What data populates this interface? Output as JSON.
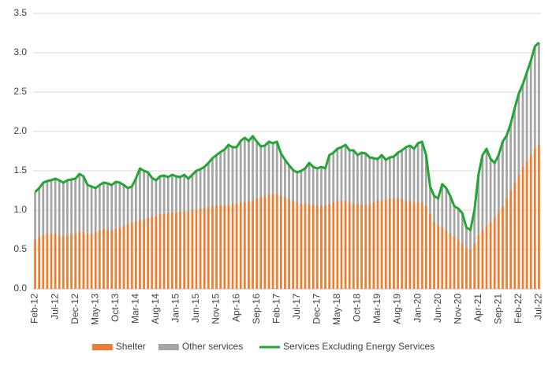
{
  "chart_data": {
    "type": "bar",
    "stacked": true,
    "categories": [
      "Feb-12",
      null,
      null,
      null,
      null,
      "Jul-12",
      null,
      null,
      null,
      null,
      "Dec-12",
      null,
      null,
      null,
      null,
      "May-13",
      null,
      null,
      null,
      null,
      "Oct-13",
      null,
      null,
      null,
      null,
      "Mar-14",
      null,
      null,
      null,
      null,
      "Aug-14",
      null,
      null,
      null,
      null,
      "Jan-15",
      null,
      null,
      null,
      null,
      "Jun-15",
      null,
      null,
      null,
      null,
      "Nov-15",
      null,
      null,
      null,
      null,
      "Apr-16",
      null,
      null,
      null,
      null,
      "Sep-16",
      null,
      null,
      null,
      null,
      "Feb-17",
      null,
      null,
      null,
      null,
      "Jul-17",
      null,
      null,
      null,
      null,
      "Dec-17",
      null,
      null,
      null,
      null,
      "May-18",
      null,
      null,
      null,
      null,
      "Oct-18",
      null,
      null,
      null,
      null,
      "Mar-19",
      null,
      null,
      null,
      null,
      "Aug-19",
      null,
      null,
      null,
      null,
      "Jan-20",
      null,
      null,
      null,
      null,
      "Jun-20",
      null,
      null,
      null,
      null,
      "Nov-20",
      null,
      null,
      null,
      null,
      "Apr-21",
      null,
      null,
      null,
      null,
      "Sep-21",
      null,
      null,
      null,
      null,
      "Feb-22",
      null,
      null,
      null,
      null,
      "Jul-22"
    ],
    "series": [
      {
        "name": "Shelter",
        "type": "bar",
        "color": "#ed7d31",
        "values": [
          0.62,
          0.66,
          0.68,
          0.7,
          0.7,
          0.7,
          0.68,
          0.67,
          0.68,
          0.7,
          0.7,
          0.72,
          0.72,
          0.7,
          0.7,
          0.72,
          0.74,
          0.76,
          0.75,
          0.74,
          0.76,
          0.78,
          0.8,
          0.82,
          0.84,
          0.86,
          0.88,
          0.88,
          0.9,
          0.92,
          0.92,
          0.95,
          0.95,
          0.96,
          0.97,
          0.97,
          0.98,
          0.98,
          0.98,
          1.0,
          1.0,
          1.02,
          1.03,
          1.04,
          1.05,
          1.06,
          1.06,
          1.06,
          1.07,
          1.08,
          1.08,
          1.1,
          1.1,
          1.12,
          1.12,
          1.15,
          1.17,
          1.18,
          1.2,
          1.2,
          1.2,
          1.18,
          1.16,
          1.14,
          1.12,
          1.1,
          1.08,
          1.08,
          1.08,
          1.07,
          1.06,
          1.06,
          1.06,
          1.08,
          1.1,
          1.12,
          1.12,
          1.12,
          1.1,
          1.08,
          1.08,
          1.07,
          1.07,
          1.08,
          1.1,
          1.12,
          1.12,
          1.13,
          1.14,
          1.15,
          1.15,
          1.14,
          1.12,
          1.12,
          1.1,
          1.1,
          1.1,
          1.05,
          0.95,
          0.85,
          0.8,
          0.78,
          0.75,
          0.7,
          0.66,
          0.62,
          0.58,
          0.52,
          0.5,
          0.58,
          0.68,
          0.75,
          0.8,
          0.85,
          0.9,
          0.98,
          1.05,
          1.15,
          1.25,
          1.35,
          1.45,
          1.55,
          1.62,
          1.7,
          1.78,
          1.83
        ]
      },
      {
        "name": "Other services",
        "type": "bar",
        "color": "#a5a5a5",
        "values": [
          0.61,
          0.62,
          0.67,
          0.67,
          0.68,
          0.7,
          0.7,
          0.68,
          0.7,
          0.69,
          0.7,
          0.74,
          0.71,
          0.62,
          0.6,
          0.56,
          0.58,
          0.59,
          0.59,
          0.58,
          0.6,
          0.57,
          0.52,
          0.46,
          0.46,
          0.54,
          0.65,
          0.62,
          0.58,
          0.49,
          0.46,
          0.48,
          0.49,
          0.46,
          0.48,
          0.46,
          0.44,
          0.47,
          0.42,
          0.45,
          0.5,
          0.5,
          0.52,
          0.56,
          0.61,
          0.64,
          0.68,
          0.71,
          0.76,
          0.72,
          0.72,
          0.78,
          0.82,
          0.76,
          0.82,
          0.72,
          0.64,
          0.64,
          0.67,
          0.65,
          0.67,
          0.54,
          0.48,
          0.43,
          0.39,
          0.38,
          0.42,
          0.45,
          0.52,
          0.48,
          0.47,
          0.49,
          0.47,
          0.62,
          0.63,
          0.66,
          0.68,
          0.71,
          0.66,
          0.68,
          0.62,
          0.66,
          0.65,
          0.59,
          0.56,
          0.53,
          0.58,
          0.51,
          0.53,
          0.53,
          0.58,
          0.62,
          0.68,
          0.7,
          0.68,
          0.75,
          0.77,
          0.65,
          0.35,
          0.33,
          0.35,
          0.55,
          0.53,
          0.48,
          0.39,
          0.4,
          0.38,
          0.26,
          0.25,
          0.42,
          0.77,
          0.95,
          0.98,
          0.8,
          0.7,
          0.72,
          0.82,
          0.8,
          0.85,
          0.95,
          1.03,
          1.05,
          1.13,
          1.2,
          1.3,
          1.3
        ]
      },
      {
        "name": "Services Excluding Energy Services",
        "type": "line",
        "color": "#22a533",
        "values": [
          1.23,
          1.28,
          1.35,
          1.37,
          1.38,
          1.4,
          1.38,
          1.35,
          1.38,
          1.39,
          1.4,
          1.46,
          1.43,
          1.32,
          1.3,
          1.28,
          1.32,
          1.35,
          1.34,
          1.32,
          1.36,
          1.35,
          1.32,
          1.28,
          1.3,
          1.4,
          1.53,
          1.5,
          1.48,
          1.41,
          1.38,
          1.43,
          1.44,
          1.42,
          1.45,
          1.43,
          1.42,
          1.45,
          1.4,
          1.45,
          1.5,
          1.52,
          1.55,
          1.6,
          1.66,
          1.7,
          1.74,
          1.77,
          1.83,
          1.8,
          1.8,
          1.88,
          1.92,
          1.88,
          1.94,
          1.87,
          1.81,
          1.82,
          1.87,
          1.85,
          1.87,
          1.72,
          1.64,
          1.57,
          1.51,
          1.48,
          1.5,
          1.53,
          1.6,
          1.55,
          1.53,
          1.55,
          1.53,
          1.7,
          1.73,
          1.78,
          1.8,
          1.83,
          1.76,
          1.76,
          1.7,
          1.73,
          1.72,
          1.67,
          1.66,
          1.65,
          1.7,
          1.64,
          1.67,
          1.68,
          1.73,
          1.76,
          1.8,
          1.82,
          1.78,
          1.85,
          1.87,
          1.7,
          1.3,
          1.18,
          1.15,
          1.33,
          1.28,
          1.18,
          1.05,
          1.02,
          0.96,
          0.78,
          0.75,
          1.0,
          1.45,
          1.7,
          1.78,
          1.65,
          1.6,
          1.7,
          1.87,
          1.95,
          2.1,
          2.3,
          2.48,
          2.6,
          2.75,
          2.9,
          3.08,
          3.13
        ]
      }
    ],
    "ylim": [
      0,
      3.5
    ],
    "yticks": [
      {
        "value": 0,
        "label": "0.0"
      },
      0.5,
      {
        "value": 1,
        "label": "1.0"
      },
      1.5,
      {
        "value": 2,
        "label": "2.0"
      },
      2.5,
      {
        "value": 3,
        "label": "3.0"
      },
      3.5
    ],
    "grid": true,
    "legend": "bottom"
  }
}
